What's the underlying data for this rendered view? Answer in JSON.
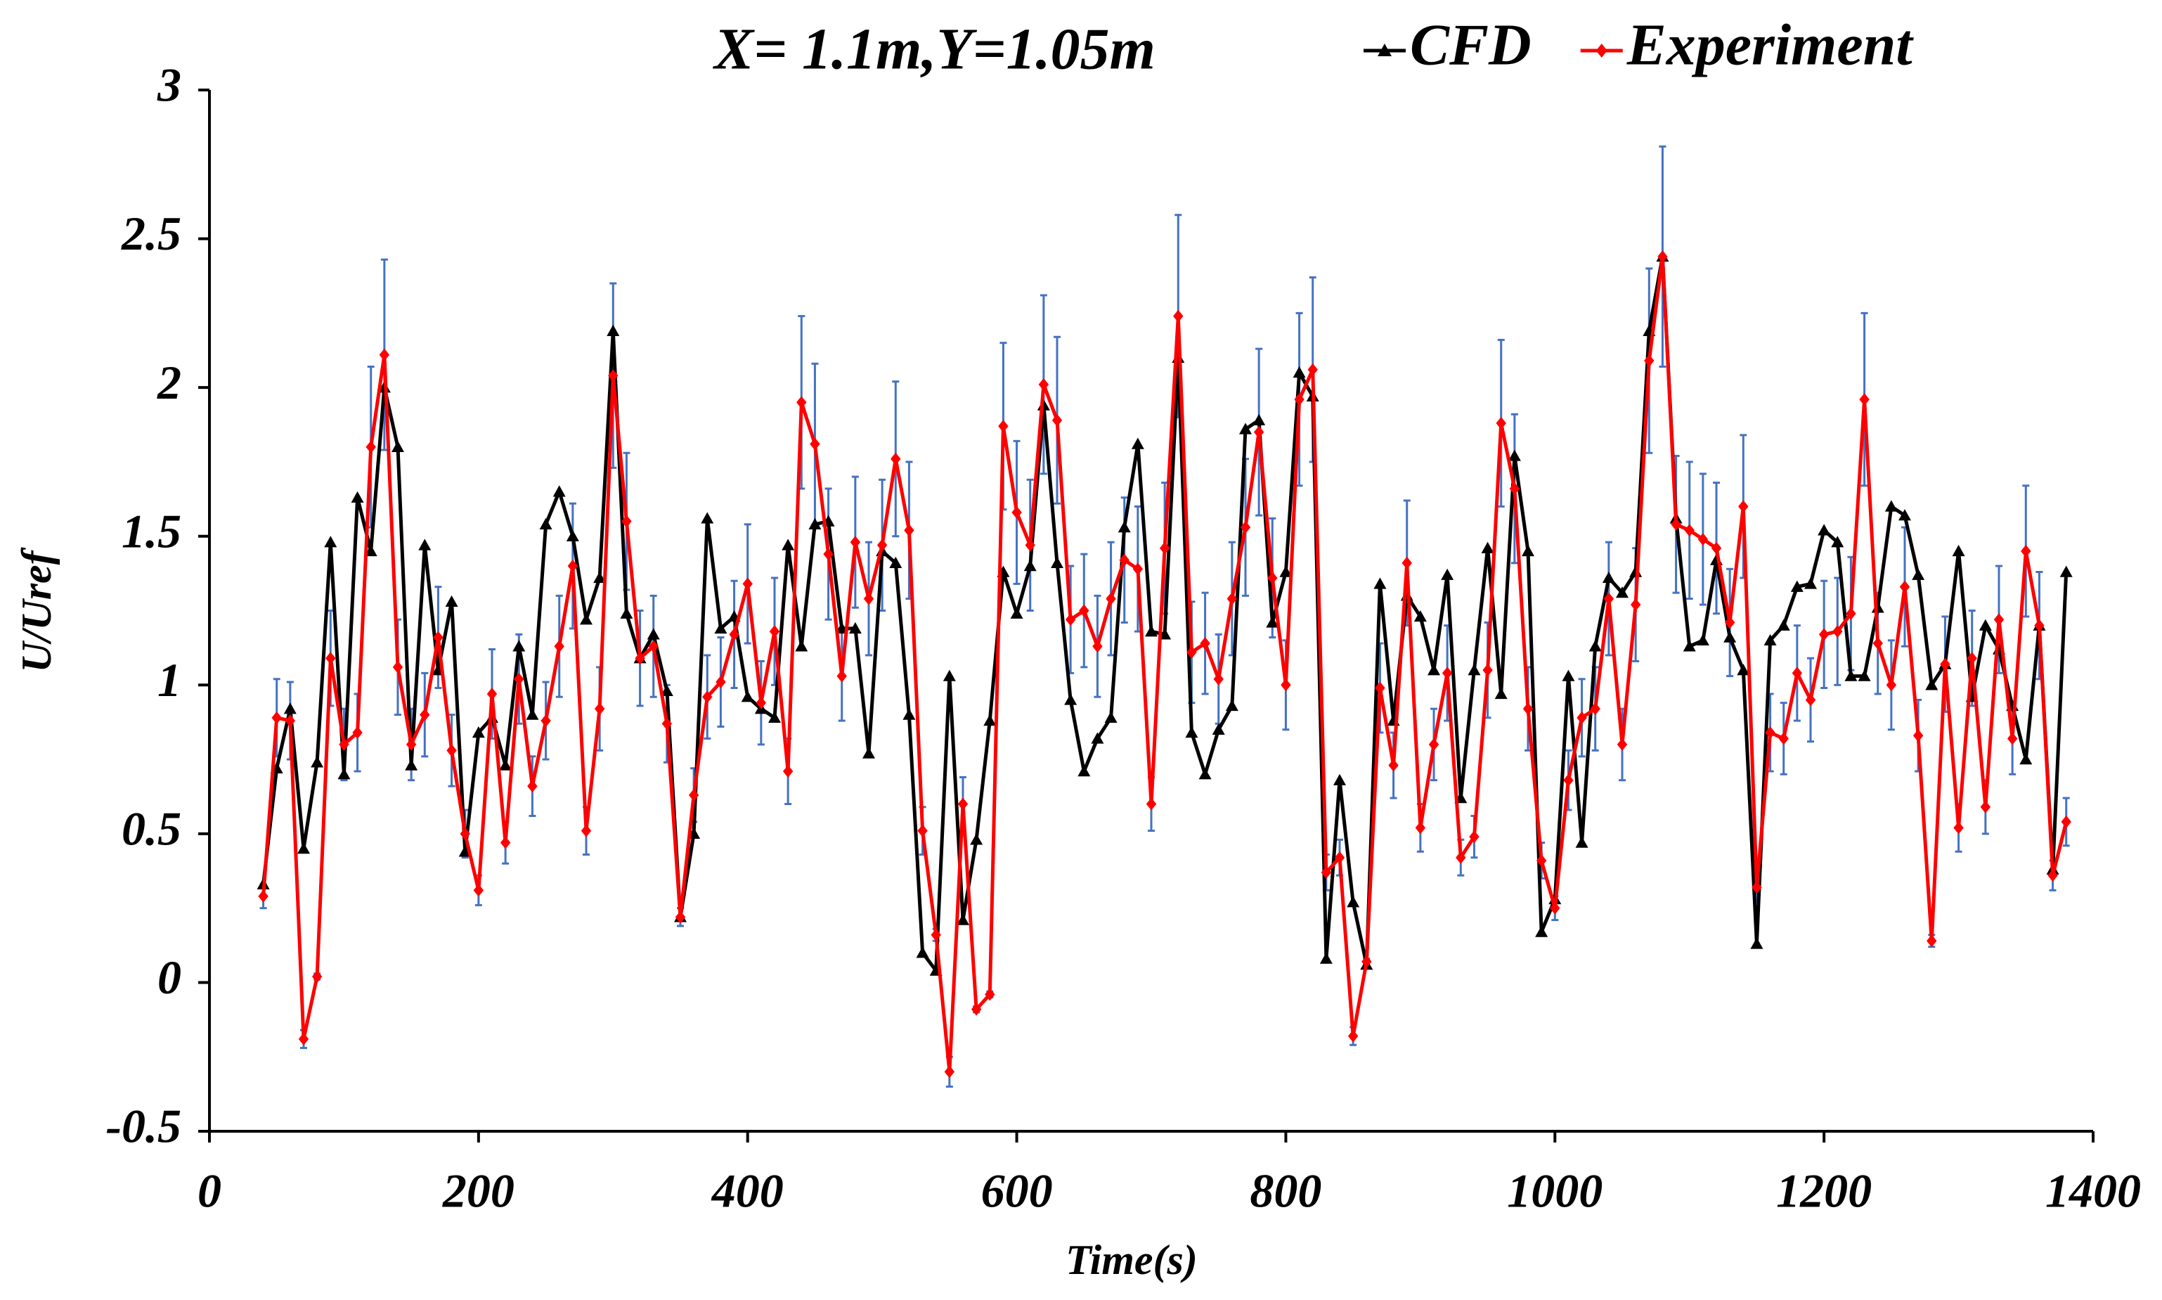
{
  "chart_data": {
    "type": "line",
    "title": "X= 1.1m,Y=1.05m",
    "xlabel": "Time(s)",
    "ylabel": "U/Uref",
    "xlim": [
      0,
      1400
    ],
    "xticks": [
      0,
      200,
      400,
      600,
      800,
      1000,
      1200,
      1400
    ],
    "ylim": [
      -0.5,
      3
    ],
    "yticks": [
      -0.5,
      0,
      0.5,
      1,
      1.5,
      2,
      2.5,
      3
    ],
    "legend": "top-right",
    "errorbar_color": "#4472c4",
    "x": [
      40,
      50,
      60,
      70,
      80,
      90,
      100,
      110,
      120,
      130,
      140,
      150,
      160,
      170,
      180,
      190,
      200,
      210,
      220,
      230,
      240,
      250,
      260,
      270,
      280,
      290,
      300,
      310,
      320,
      330,
      340,
      350,
      360,
      370,
      380,
      390,
      400,
      410,
      420,
      430,
      440,
      450,
      460,
      470,
      480,
      490,
      500,
      510,
      520,
      530,
      540,
      550,
      560,
      570,
      580,
      590,
      600,
      610,
      620,
      630,
      640,
      650,
      660,
      670,
      680,
      690,
      700,
      710,
      720,
      730,
      740,
      750,
      760,
      770,
      780,
      790,
      800,
      810,
      820,
      830,
      840,
      850,
      860,
      870,
      880,
      890,
      900,
      910,
      920,
      930,
      940,
      950,
      960,
      970,
      980,
      990,
      1000,
      1010,
      1020,
      1030,
      1040,
      1050,
      1060,
      1070,
      1080,
      1090,
      1100,
      1110,
      1120,
      1130,
      1140,
      1150,
      1160,
      1170,
      1180,
      1190,
      1200,
      1210,
      1220,
      1230,
      1240,
      1250,
      1260,
      1270,
      1280,
      1290,
      1300,
      1310,
      1320,
      1330,
      1340,
      1350,
      1360,
      1370,
      1380
    ],
    "series": [
      {
        "name": "CFD",
        "color": "#000000",
        "marker": "triangle",
        "values": [
          0.33,
          0.72,
          0.92,
          0.45,
          0.74,
          1.48,
          0.7,
          1.63,
          1.45,
          2.0,
          1.8,
          0.73,
          1.47,
          1.05,
          1.28,
          0.44,
          0.84,
          0.89,
          0.73,
          1.13,
          0.9,
          1.54,
          1.65,
          1.5,
          1.22,
          1.36,
          2.19,
          1.24,
          1.09,
          1.17,
          0.98,
          0.22,
          0.5,
          1.56,
          1.19,
          1.23,
          0.96,
          0.92,
          0.89,
          1.47,
          1.13,
          1.54,
          1.55,
          1.19,
          1.19,
          0.77,
          1.45,
          1.41,
          0.9,
          0.1,
          0.04,
          1.03,
          0.21,
          0.48,
          0.88,
          1.38,
          1.24,
          1.4,
          1.94,
          1.41,
          0.95,
          0.71,
          0.82,
          0.89,
          1.53,
          1.81,
          1.18,
          1.17,
          2.1,
          0.84,
          0.7,
          0.85,
          0.93,
          1.86,
          1.89,
          1.21,
          1.38,
          2.05,
          1.97,
          0.08,
          0.68,
          0.27,
          0.06,
          1.34,
          0.88,
          1.3,
          1.23,
          1.05,
          1.37,
          0.62,
          1.05,
          1.46,
          0.97,
          1.77,
          1.45,
          0.17,
          0.28,
          1.03,
          0.47,
          1.13,
          1.36,
          1.31,
          1.38,
          2.19,
          2.44,
          1.56,
          1.13,
          1.15,
          1.42,
          1.16,
          1.05,
          0.13,
          1.15,
          1.2,
          1.33,
          1.34,
          1.52,
          1.48,
          1.03,
          1.03,
          1.26,
          1.6,
          1.57,
          1.37,
          1.0,
          1.07,
          1.45,
          0.96,
          1.2,
          1.12,
          0.93,
          0.75,
          1.2,
          0.38,
          1.38
        ]
      },
      {
        "name": "Experiment",
        "color": "#ff0000",
        "marker": "diamond",
        "values": [
          0.29,
          0.89,
          0.88,
          -0.19,
          0.02,
          1.09,
          0.8,
          0.84,
          1.8,
          2.11,
          1.06,
          0.8,
          0.9,
          1.16,
          0.78,
          0.5,
          0.31,
          0.97,
          0.47,
          1.02,
          0.66,
          0.88,
          1.13,
          1.4,
          0.51,
          0.92,
          2.04,
          1.55,
          1.09,
          1.13,
          0.87,
          0.22,
          0.63,
          0.96,
          1.01,
          1.17,
          1.34,
          0.94,
          1.18,
          0.71,
          1.95,
          1.81,
          1.44,
          1.03,
          1.48,
          1.29,
          1.47,
          1.76,
          1.52,
          0.51,
          0.16,
          -0.3,
          0.6,
          -0.09,
          -0.04,
          1.87,
          1.58,
          1.47,
          2.01,
          1.89,
          1.22,
          1.25,
          1.13,
          1.29,
          1.42,
          1.39,
          0.6,
          1.46,
          2.24,
          1.11,
          1.14,
          1.02,
          1.29,
          1.53,
          1.85,
          1.36,
          1.0,
          1.96,
          2.06,
          0.37,
          0.42,
          -0.18,
          0.07,
          0.99,
          0.73,
          1.41,
          0.52,
          0.8,
          1.04,
          0.42,
          0.49,
          1.05,
          1.88,
          1.66,
          0.92,
          0.41,
          0.25,
          0.68,
          0.89,
          0.92,
          1.29,
          0.8,
          1.27,
          2.09,
          2.44,
          1.54,
          1.52,
          1.49,
          1.46,
          1.21,
          1.6,
          0.32,
          0.84,
          0.82,
          1.04,
          0.95,
          1.17,
          1.18,
          1.24,
          1.96,
          1.14,
          1.0,
          1.33,
          0.83,
          0.14,
          1.07,
          0.52,
          1.09,
          0.59,
          1.22,
          0.82,
          1.45,
          1.2,
          0.36,
          0.54
        ],
        "errors": [
          0.04,
          0.13,
          0.13,
          0.03,
          0.01,
          0.16,
          0.12,
          0.13,
          0.27,
          0.32,
          0.16,
          0.12,
          0.14,
          0.17,
          0.12,
          0.08,
          0.05,
          0.15,
          0.07,
          0.15,
          0.1,
          0.13,
          0.17,
          0.21,
          0.08,
          0.14,
          0.31,
          0.23,
          0.16,
          0.17,
          0.13,
          0.03,
          0.09,
          0.14,
          0.15,
          0.18,
          0.2,
          0.14,
          0.18,
          0.11,
          0.29,
          0.27,
          0.22,
          0.15,
          0.22,
          0.19,
          0.22,
          0.26,
          0.23,
          0.08,
          0.02,
          0.05,
          0.09,
          0.01,
          0.01,
          0.28,
          0.24,
          0.22,
          0.3,
          0.28,
          0.18,
          0.19,
          0.17,
          0.19,
          0.21,
          0.21,
          0.09,
          0.22,
          0.34,
          0.17,
          0.17,
          0.15,
          0.19,
          0.23,
          0.28,
          0.2,
          0.15,
          0.29,
          0.31,
          0.06,
          0.06,
          0.03,
          0.01,
          0.15,
          0.11,
          0.21,
          0.08,
          0.12,
          0.16,
          0.06,
          0.07,
          0.16,
          0.28,
          0.25,
          0.14,
          0.06,
          0.04,
          0.1,
          0.13,
          0.14,
          0.19,
          0.12,
          0.19,
          0.31,
          0.37,
          0.23,
          0.23,
          0.22,
          0.22,
          0.18,
          0.24,
          0.05,
          0.13,
          0.12,
          0.16,
          0.14,
          0.18,
          0.18,
          0.19,
          0.29,
          0.17,
          0.15,
          0.2,
          0.12,
          0.02,
          0.16,
          0.08,
          0.16,
          0.09,
          0.18,
          0.12,
          0.22,
          0.18,
          0.05,
          0.08
        ]
      }
    ]
  }
}
